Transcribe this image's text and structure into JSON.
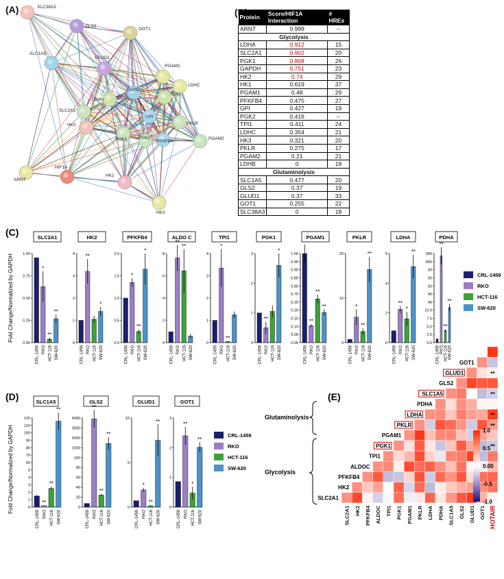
{
  "panels": {
    "A": "(A)",
    "B": "(B)",
    "C": "(C)",
    "D": "(D)",
    "E": "(E)"
  },
  "network": {
    "nodes": [
      "SLC38A3",
      "GLS2",
      "GOT1",
      "SLC1A5",
      "GLUD1",
      "LDHC",
      "PGAM1",
      "LDHA",
      "GAPDH",
      "TPI1",
      "SLC2A1",
      "GPI",
      "PKLR",
      "HK2",
      "PGK1",
      "PGK2",
      "PFKFB4",
      "PGAM2",
      "ARNT",
      "HIF1A",
      "HK1",
      "HK3"
    ],
    "colors": {
      "SLC38A3": "#f5c4b8",
      "GLS2": "#b39ddb",
      "GOT1": "#d9d39a",
      "SLC1A5": "#9fd4ee",
      "GLUD1": "#c9a3e0",
      "LDHC": "#e8e8a0",
      "PGAM1": "#e7e69a",
      "LDHA": "#cfe4a8",
      "GAPDH": "#9fd4ee",
      "TPI1": "#cfe4a8",
      "SLC2A1": "#c8e6c0",
      "GPI": "#a8d8f0",
      "PKLR": "#c8e6c0",
      "HK2": "#f5c4b8",
      "PGK1": "#c8e6c0",
      "PGK2": "#c8e6c0",
      "PFKFB4": "#a8d8f0",
      "PGAM2": "#c8e6c0",
      "ARNT": "#e8e8a0",
      "HIF1A": "#ef8a7a",
      "HK1": "#f2b8c6",
      "HK3": "#e8e8a0"
    }
  },
  "table": {
    "headers": [
      "Protein",
      "Score/HIF1A Interaction",
      "# HREs"
    ],
    "rows": [
      {
        "p": "ARNT",
        "s": "0.999",
        "h": "--",
        "red": false
      },
      {
        "section": "Glycolysis"
      },
      {
        "p": "LDHA",
        "s": "0.912",
        "h": "15",
        "red": true
      },
      {
        "p": "SLC2A1",
        "s": "0.902",
        "h": "20",
        "red": true
      },
      {
        "p": "PGK1",
        "s": "0.808",
        "h": "26",
        "red": true
      },
      {
        "p": "GAPDH",
        "s": "0.751",
        "h": "23",
        "red": true
      },
      {
        "p": "HK2",
        "s": "0.74",
        "h": "29",
        "red": true
      },
      {
        "p": "HK1",
        "s": "0.619",
        "h": "37",
        "red": false
      },
      {
        "p": "PGAM1",
        "s": "0.48",
        "h": "29",
        "red": false
      },
      {
        "p": "PFKFB4",
        "s": "0.475",
        "h": "27",
        "red": false
      },
      {
        "p": "GPI",
        "s": "0.427",
        "h": "19",
        "red": false
      },
      {
        "p": "PGK2",
        "s": "0.416",
        "h": "--",
        "red": false
      },
      {
        "p": "TPI1",
        "s": "0.411",
        "h": "24",
        "red": false
      },
      {
        "p": "LDHC",
        "s": "0.354",
        "h": "21",
        "red": false
      },
      {
        "p": "HK3",
        "s": "0.321",
        "h": "20",
        "red": false
      },
      {
        "p": "PKLR",
        "s": "0.275",
        "h": "17",
        "red": false
      },
      {
        "p": "PGAM2",
        "s": "0.21",
        "h": "21",
        "red": false
      },
      {
        "p": "LDHB",
        "s": "0",
        "h": "18",
        "red": false
      },
      {
        "section": "Glutaminolysis"
      },
      {
        "p": "SLC1A5",
        "s": "0.477",
        "h": "20",
        "red": false
      },
      {
        "p": "GLS2",
        "s": "0.37",
        "h": "19",
        "red": false
      },
      {
        "p": "GLUD1",
        "s": "0.37",
        "h": "33",
        "red": false
      },
      {
        "p": "GOT1",
        "s": "0.255",
        "h": "22",
        "red": false
      },
      {
        "p": "SLC38A3",
        "s": "0",
        "h": "18",
        "red": false
      }
    ]
  },
  "series_colors": {
    "CRL-1459": "#1c1f6e",
    "RKO": "#9b7fc4",
    "HCT-116": "#3ea23a",
    "SW-620": "#4d92c8"
  },
  "chart_data": [
    {
      "type": "bar",
      "panel": "C",
      "title": "SLC2A1",
      "categories": [
        "CRL-1459",
        "RKO",
        "HCT-116",
        "SW-620"
      ],
      "values": [
        1.0,
        0.66,
        0.04,
        0.28
      ],
      "errors": [
        0,
        0.18,
        0.02,
        0.05
      ],
      "sig": [
        "",
        "*",
        "**",
        "**"
      ],
      "yticks": [
        "0.00",
        "0.25",
        "0.50",
        "0.75",
        "1.00"
      ],
      "ylim": [
        0,
        1.05
      ]
    },
    {
      "type": "bar",
      "panel": "C",
      "title": "HK2",
      "categories": [
        "CRL-1459",
        "RKO",
        "HCT-116",
        "SW-620"
      ],
      "values": [
        1.0,
        3.2,
        1.05,
        1.4
      ],
      "errors": [
        0,
        0.55,
        0.15,
        0.2
      ],
      "sig": [
        "",
        "**",
        "",
        "*"
      ],
      "yticks": [
        "0",
        "1",
        "2",
        "3",
        "4"
      ],
      "ylim": [
        0,
        4
      ]
    },
    {
      "type": "bar",
      "panel": "C",
      "title": "PFKFB4",
      "categories": [
        "CRL-1459",
        "RKO",
        "HCT-116",
        "SW-620"
      ],
      "values": [
        1.0,
        1.35,
        0.25,
        1.65
      ],
      "errors": [
        0,
        0.1,
        0.05,
        0.35
      ],
      "sig": [
        "",
        "*",
        "**",
        "*"
      ],
      "yticks": [
        "0.0",
        "0.5",
        "1.0",
        "1.5",
        "2.0"
      ],
      "ylim": [
        0,
        2
      ]
    },
    {
      "type": "bar",
      "panel": "C",
      "title": "ALDO C",
      "categories": [
        "CRL-1459",
        "RKO",
        "HCT-116",
        "SW-620"
      ],
      "values": [
        1.0,
        7.8,
        6.6,
        0.6
      ],
      "errors": [
        0,
        1.2,
        2.0,
        0.2
      ],
      "sig": [
        "",
        "**",
        "**",
        ""
      ],
      "yticks": [
        "0",
        "2",
        "4",
        "6",
        "8"
      ],
      "ylim": [
        0,
        8.2
      ]
    },
    {
      "type": "bar",
      "panel": "C",
      "title": "TPI1",
      "categories": [
        "CRL-1459",
        "RKO",
        "HCT-116",
        "SW-620"
      ],
      "values": [
        1.0,
        3.35,
        0.05,
        1.25
      ],
      "errors": [
        0,
        0.85,
        0.03,
        0.15
      ],
      "sig": [
        "",
        "*",
        "**",
        ""
      ],
      "yticks": [
        "0",
        "1",
        "2",
        "3",
        "4"
      ],
      "ylim": [
        0,
        4
      ]
    },
    {
      "type": "bar",
      "panel": "C",
      "title": "PGK1",
      "categories": [
        "CRL-1459",
        "RKO",
        "HCT-116",
        "SW-620"
      ],
      "values": [
        1.0,
        0.5,
        1.05,
        2.6
      ],
      "errors": [
        0,
        0.2,
        0.2,
        0.4
      ],
      "sig": [
        "",
        "**",
        "",
        "*"
      ],
      "yticks": [
        "0",
        "1",
        "2",
        "3"
      ],
      "ylim": [
        0,
        3
      ]
    },
    {
      "type": "bar",
      "panel": "C",
      "title": "PGAM1",
      "categories": [
        "CRL-1459",
        "RKO",
        "HCT-116",
        "SW-620"
      ],
      "values": [
        1.0,
        0.015,
        0.09,
        0.04
      ],
      "errors": [
        0,
        0.005,
        0.02,
        0.01
      ],
      "sig": [
        "",
        "**",
        "**",
        "**"
      ],
      "yticks": [
        "0.00",
        "0.05",
        "0.10",
        "0.15",
        "0.20",
        "0.25",
        "0.75",
        "0.80",
        "0.85",
        "0.90",
        "0.95",
        "1.00"
      ],
      "ylim": [
        0,
        1
      ]
    },
    {
      "type": "bar",
      "panel": "C",
      "title": "PKLR",
      "categories": [
        "CRL-1459",
        "RKO",
        "HCT-116",
        "SW-620"
      ],
      "values": [
        1.0,
        8.0,
        3.5,
        23.0
      ],
      "errors": [
        0,
        2.5,
        1.0,
        4.0
      ],
      "sig": [
        "",
        "*",
        "**",
        "**"
      ],
      "yticks": [
        "0",
        "10",
        "20"
      ],
      "ylim": [
        0,
        28
      ]
    },
    {
      "type": "bar",
      "panel": "C",
      "title": "LDHA",
      "categories": [
        "CRL-1459",
        "RKO",
        "HCT-116",
        "SW-620"
      ],
      "values": [
        1.0,
        2.8,
        2.0,
        6.4
      ],
      "errors": [
        0,
        0.3,
        0.6,
        1.0
      ],
      "sig": [
        "",
        "**",
        "*",
        "**"
      ],
      "yticks": [
        "0",
        "2",
        "4",
        "6"
      ],
      "ylim": [
        0,
        7.5
      ]
    },
    {
      "type": "bar",
      "panel": "C",
      "title": "PDHA",
      "categories": [
        "CRL-1459",
        "RKO",
        "HCT-116",
        "SW-620"
      ],
      "values": [
        1.0,
        845,
        9.0,
        52
      ],
      "errors": [
        0,
        50,
        1.0,
        4
      ],
      "sig": [
        "",
        "**",
        "**",
        "**"
      ],
      "yticks": [
        "0.0",
        "2.5",
        "5.0",
        "7.5",
        "10.0",
        "40",
        "45",
        "50",
        "55",
        "60",
        "800",
        "900"
      ],
      "ylim": [
        0,
        950
      ]
    },
    {
      "type": "bar",
      "panel": "D",
      "title": "SLC1A5",
      "categories": [
        "CRL-1459",
        "RKO",
        "HCT-116",
        "SW-620"
      ],
      "values": [
        1.0,
        0.1,
        2.1,
        102
      ],
      "errors": [
        0,
        0.05,
        0.2,
        15
      ],
      "sig": [
        "",
        "**",
        "**",
        "**"
      ],
      "yticks": [
        "0",
        "1",
        "2",
        "3",
        "4",
        "5",
        "60",
        "70",
        "80",
        "90",
        "100",
        "110",
        "120"
      ],
      "ylim": [
        0,
        120
      ]
    },
    {
      "type": "bar",
      "panel": "D",
      "title": "GLS2",
      "categories": [
        "CRL-1459",
        "RKO",
        "HCT-116",
        "SW-620"
      ],
      "values": [
        1.0,
        4100,
        40,
        1150
      ],
      "errors": [
        0,
        250,
        15,
        120
      ],
      "sig": [
        "",
        "**",
        "**",
        "**"
      ],
      "yticks": [
        "0",
        "20",
        "40",
        "60",
        "80",
        "100",
        "1000",
        "2000",
        "3000",
        "4000"
      ],
      "ylim": [
        0,
        4300
      ]
    },
    {
      "type": "bar",
      "panel": "D",
      "title": "GLUD1",
      "categories": [
        "CRL-1459",
        "RKO",
        "HCT-116",
        "SW-620"
      ],
      "values": [
        1.0,
        2.7,
        0.2,
        10.5
      ],
      "errors": [
        0,
        0.3,
        0.1,
        2.5
      ],
      "sig": [
        "",
        "*",
        "**",
        "**"
      ],
      "yticks": [
        "0",
        "5",
        "10"
      ],
      "ylim": [
        0,
        14
      ]
    },
    {
      "type": "bar",
      "panel": "D",
      "title": "GOT1",
      "categories": [
        "CRL-1459",
        "RKO",
        "HCT-116",
        "SW-620"
      ],
      "values": [
        1.0,
        2.8,
        0.55,
        2.35
      ],
      "errors": [
        0,
        0.35,
        0.25,
        0.2
      ],
      "sig": [
        "",
        "**",
        "*",
        "**"
      ],
      "yticks": [
        "0",
        "1",
        "2",
        "3"
      ],
      "ylim": [
        0,
        3.5
      ]
    },
    {
      "type": "heatmap",
      "panel": "E",
      "labels": [
        "SLC2A1",
        "HK2",
        "PFKFB4",
        "ALDOC",
        "TPI1",
        "PGK1",
        "PGAM1",
        "PKLR",
        "LDHA",
        "PDHA",
        "SLC1A5",
        "GLS2",
        "GLUD1",
        "GOT1",
        "HOTAIR"
      ],
      "boxed": [
        "GLUD1",
        "SLC1A5",
        "LDHA",
        "PKLR",
        "PGK1"
      ],
      "groups": [
        "Glutaminolysis",
        "Glycolysis"
      ],
      "colorbar_ticks": [
        "1.0",
        "0.5",
        "0.00",
        "-0.5",
        "-1.0"
      ],
      "stars": [
        [
          "HOTAIR",
          "GLUD1"
        ],
        [
          "HOTAIR",
          "SLC1A5"
        ],
        [
          "HOTAIR",
          "LDHA"
        ],
        [
          "HOTAIR",
          "PKLR"
        ],
        [
          "HOTAIR",
          "PGK1"
        ]
      ]
    }
  ],
  "ylabel_c": "Fold  Change/Normalized by GAPDH",
  "ylabel_d": "Fold  Change/Normalized by GAPDH",
  "sig_star": "**"
}
